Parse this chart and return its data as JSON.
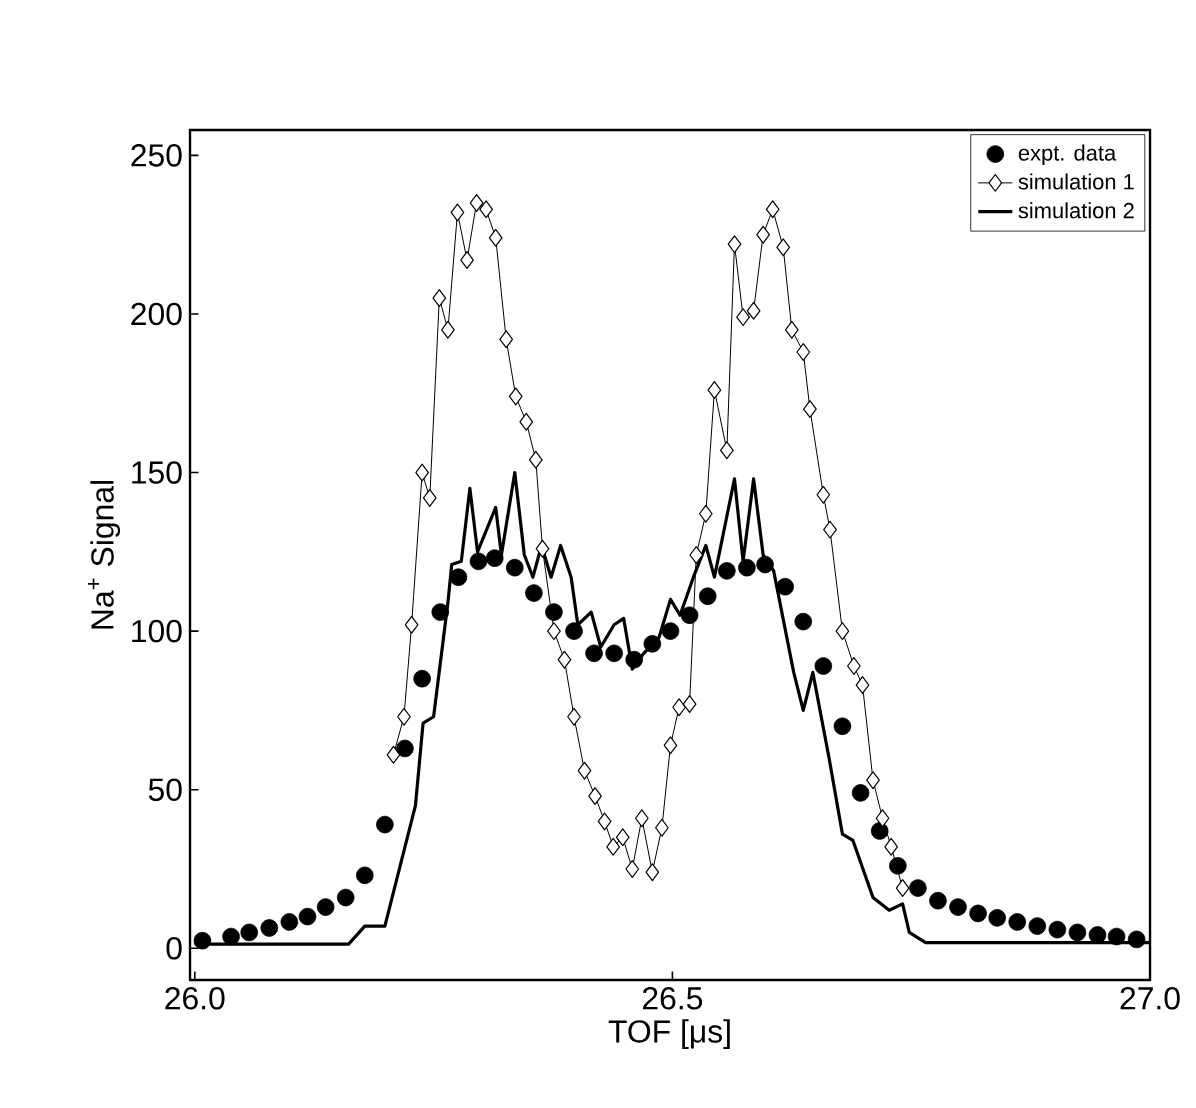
{
  "chart_data": {
    "type": "line",
    "xlabel": "TOF [μs]",
    "ylabel": "Na$^{+}$ Signal",
    "xlim": [
      25.995,
      27.0
    ],
    "ylim": [
      -10,
      258
    ],
    "xticks": [
      {
        "value": 26.0,
        "label": "26.0"
      },
      {
        "value": 26.5,
        "label": "26.5"
      },
      {
        "value": 27.0,
        "label": "27.0"
      }
    ],
    "yticks": [
      0,
      50,
      100,
      150,
      200,
      250
    ],
    "grid": false,
    "legend": "top right",
    "series": [
      {
        "name": "expt. data",
        "type": "scatter",
        "marker": "circle",
        "color": "#000000",
        "x": [
          26.008,
          26.038,
          26.057,
          26.078,
          26.099,
          26.118,
          26.137,
          26.158,
          26.178,
          26.199,
          26.22,
          26.238,
          26.257,
          26.276,
          26.297,
          26.314,
          26.335,
          26.355,
          26.376,
          26.397,
          26.418,
          26.439,
          26.46,
          26.479,
          26.498,
          26.518,
          26.537,
          26.557,
          26.578,
          26.597,
          26.618,
          26.637,
          26.658,
          26.678,
          26.697,
          26.717,
          26.736,
          26.757,
          26.778,
          26.799,
          26.82,
          26.84,
          26.861,
          26.882,
          26.903,
          26.924,
          26.945,
          26.965,
          26.986
        ],
        "values": [
          2.4,
          3.7,
          5,
          6.4,
          8.3,
          10,
          13,
          16,
          23,
          39,
          63,
          85,
          106,
          117,
          122,
          123,
          120,
          112,
          106,
          100,
          93,
          93,
          91,
          96,
          100,
          105,
          111,
          119,
          120,
          121,
          114,
          103,
          89,
          70,
          49,
          37,
          26,
          19,
          15,
          13,
          11,
          9.6,
          8.3,
          7,
          5.9,
          5,
          4.2,
          3.7,
          2.8
        ]
      },
      {
        "name": "simulation 1",
        "marker": "diamond",
        "color": "#000000",
        "x": [
          26.208,
          26.219,
          26.227,
          26.238,
          26.246,
          26.256,
          26.265,
          26.275,
          26.285,
          26.295,
          26.305,
          26.315,
          26.326,
          26.336,
          26.347,
          26.357,
          26.364,
          26.376,
          26.387,
          26.397,
          26.408,
          26.419,
          26.429,
          26.438,
          26.448,
          26.458,
          26.468,
          26.479,
          26.489,
          26.498,
          26.507,
          26.518,
          26.525,
          26.535,
          26.544,
          26.557,
          26.565,
          26.574,
          26.585,
          26.595,
          26.605,
          26.616,
          26.625,
          26.637,
          26.644,
          26.658,
          26.665,
          26.678,
          26.69,
          26.699,
          26.71,
          26.72,
          26.729,
          26.741
        ],
        "values": [
          61,
          73,
          102,
          150,
          142,
          205,
          195,
          232,
          217,
          235,
          233,
          224,
          192,
          174,
          166,
          154,
          126,
          100,
          91,
          73,
          56,
          48,
          40,
          32,
          35,
          25,
          41,
          24,
          38,
          64,
          76,
          77,
          124,
          137,
          176,
          157,
          222,
          199,
          201,
          225,
          233,
          221,
          195,
          188,
          170,
          143,
          132,
          100,
          89,
          83,
          53,
          41,
          32,
          19
        ]
      },
      {
        "name": "simulation 2",
        "marker": "none",
        "color": "#000000",
        "x": [
          26.0,
          26.161,
          26.178,
          26.199,
          26.231,
          26.239,
          26.25,
          26.265,
          26.269,
          26.279,
          26.288,
          26.296,
          26.315,
          26.321,
          26.335,
          26.345,
          26.354,
          26.363,
          26.373,
          26.383,
          26.394,
          26.401,
          26.415,
          26.425,
          26.439,
          26.449,
          26.458,
          26.47,
          26.486,
          26.498,
          26.508,
          26.522,
          26.535,
          26.544,
          26.565,
          26.574,
          26.585,
          26.595,
          26.606,
          26.627,
          26.637,
          26.647,
          26.664,
          26.678,
          26.689,
          26.71,
          26.727,
          26.741,
          26.748,
          26.765,
          27.0
        ],
        "values": [
          1.3,
          1.3,
          7,
          7,
          45,
          71,
          73,
          109,
          121,
          122,
          145,
          125,
          139,
          124,
          150,
          124,
          117,
          127,
          117,
          127,
          117,
          102,
          106,
          95,
          102,
          104,
          88,
          93,
          98,
          110,
          105,
          117,
          127,
          117,
          148,
          122,
          148,
          124,
          119,
          87,
          75,
          87,
          60,
          36,
          34,
          16,
          12,
          14,
          5,
          1.8,
          1.8
        ]
      }
    ]
  }
}
